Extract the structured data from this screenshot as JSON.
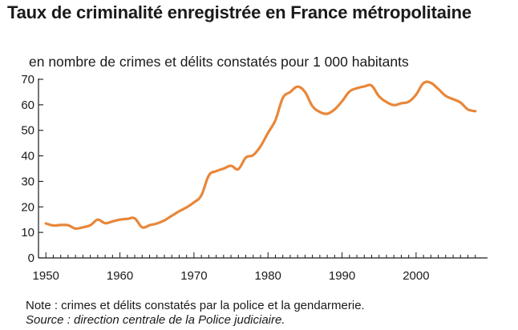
{
  "chart_data": {
    "type": "line",
    "title": "Taux de criminalité enregistrée en France métropolitaine",
    "subtitle": "en nombre de crimes et délits constatés pour 1 000 habitants",
    "xlabel": "",
    "ylabel": "",
    "xlim": [
      1949,
      2009
    ],
    "ylim": [
      0,
      70
    ],
    "x_ticks": [
      "1950",
      "1960",
      "1970",
      "1980",
      "1990",
      "2000"
    ],
    "y_ticks": [
      "0",
      "10",
      "20",
      "30",
      "40",
      "50",
      "60",
      "70"
    ],
    "grid": false,
    "legend": "none",
    "color": "#e8873a",
    "x": [
      1950,
      1951,
      1952,
      1953,
      1954,
      1955,
      1956,
      1957,
      1958,
      1959,
      1960,
      1961,
      1962,
      1963,
      1964,
      1965,
      1966,
      1967,
      1968,
      1969,
      1970,
      1971,
      1972,
      1973,
      1974,
      1975,
      1976,
      1977,
      1978,
      1979,
      1980,
      1981,
      1982,
      1983,
      1984,
      1985,
      1986,
      1987,
      1988,
      1989,
      1990,
      1991,
      1992,
      1993,
      1994,
      1995,
      1996,
      1997,
      1998,
      1999,
      2000,
      2001,
      2002,
      2003,
      2004,
      2005,
      2006,
      2007,
      2008
    ],
    "y": [
      13.5,
      12.7,
      12.9,
      12.8,
      11.5,
      12.0,
      12.8,
      15.0,
      13.6,
      14.3,
      15.0,
      15.3,
      15.5,
      12.0,
      12.8,
      13.5,
      14.7,
      16.5,
      18.3,
      19.8,
      21.8,
      24.5,
      32.3,
      34.0,
      35.0,
      36.1,
      34.8,
      39.3,
      40.3,
      43.8,
      49.0,
      54.0,
      62.7,
      65.0,
      67.1,
      65.0,
      59.5,
      57.2,
      56.5,
      58.2,
      61.4,
      65.2,
      66.5,
      67.2,
      67.5,
      63.3,
      61.1,
      59.9,
      60.6,
      61.2,
      64.0,
      68.5,
      68.6,
      66.2,
      63.5,
      62.2,
      60.9,
      58.2,
      57.5
    ]
  },
  "note": "Note : crimes et délits constatés par la police et la gendarmerie.",
  "source": "Source : direction centrale de la Police judiciaire."
}
